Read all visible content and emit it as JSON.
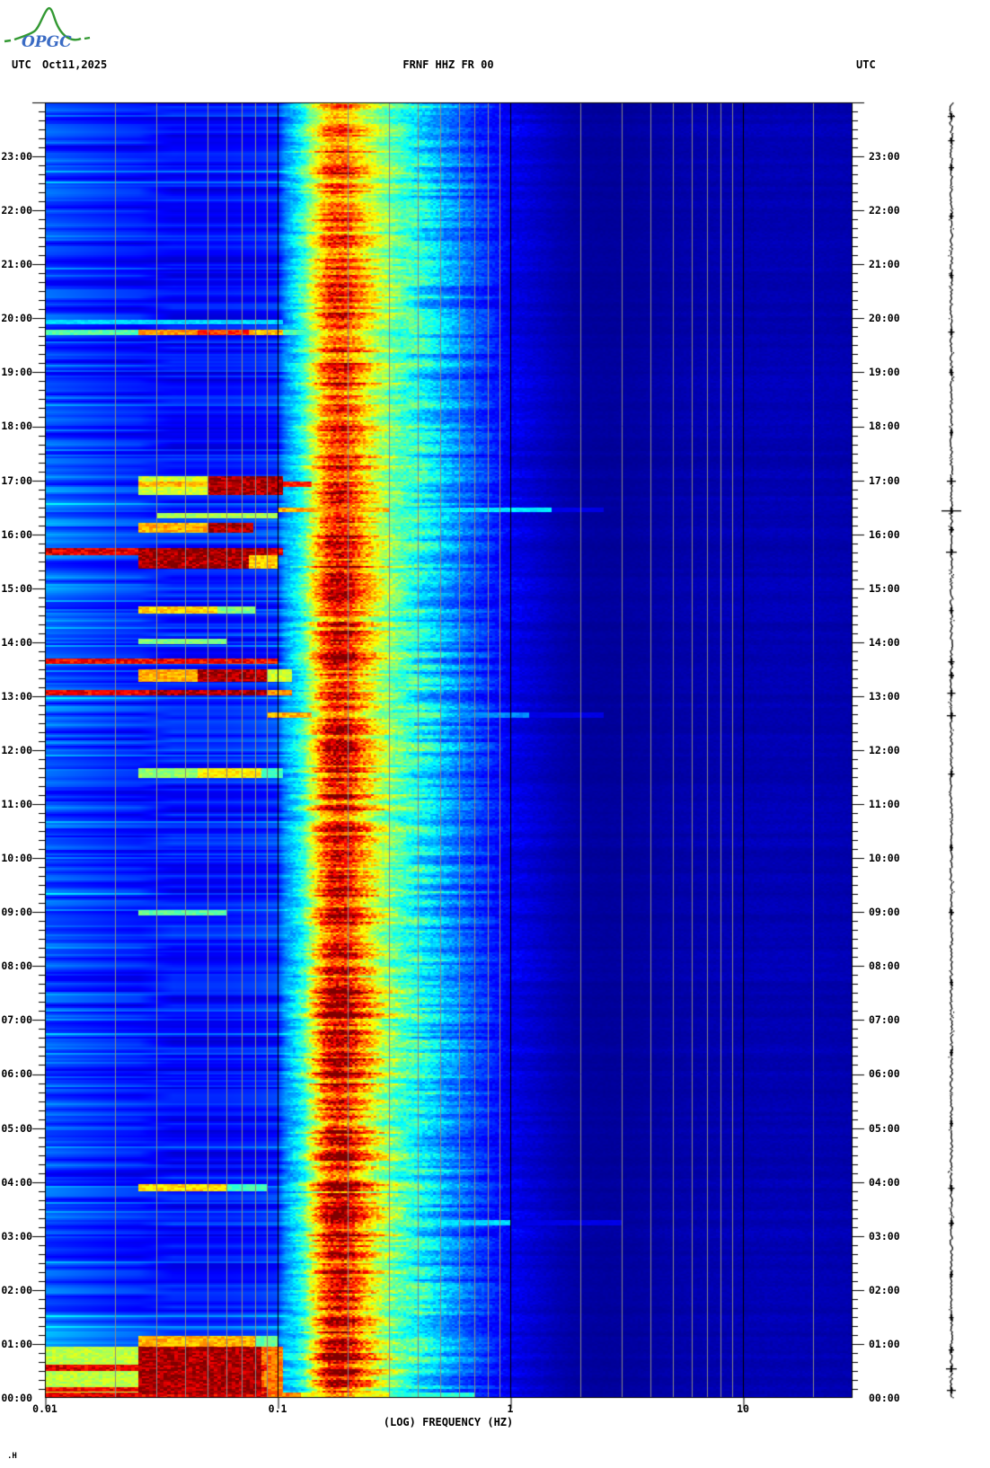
{
  "header": {
    "logo": {
      "text": "OPGC",
      "text_color": "#3a6bc4",
      "curve_color": "#339933"
    },
    "left_utc": "UTC",
    "date": "Oct11,2025",
    "station": "FRNF HHZ FR 00",
    "right_utc": "UTC"
  },
  "footer_mark": ".H",
  "layout_colors": {
    "background": "#ffffff",
    "grid_minor": "#888888",
    "grid_decade": "#000000",
    "axis": "#000000",
    "trace": "#000000"
  },
  "chart_data": {
    "type": "heatmap",
    "subtype": "seismic-spectrogram-24h",
    "title": "FRNF HHZ FR 00",
    "date": "Oct11,2025",
    "xlabel": "(LOG) FREQUENCY (HZ)",
    "x_scale": "log",
    "freq_range_hz": [
      0.01,
      29
    ],
    "freq_tick_values": [
      0.01,
      0.1,
      1,
      10
    ],
    "freq_tick_labels": [
      "0.01",
      "0.1",
      "1",
      "10"
    ],
    "minor_gridlines_hz": [
      0.02,
      0.03,
      0.04,
      0.05,
      0.06,
      0.07,
      0.08,
      0.09,
      0.2,
      0.3,
      0.4,
      0.5,
      0.6,
      0.7,
      0.8,
      0.9,
      2,
      3,
      4,
      5,
      6,
      7,
      8,
      9,
      20
    ],
    "decade_gridlines_hz": [
      0.1,
      1,
      10
    ],
    "time_axis": {
      "unit": "UTC",
      "start": "00:00",
      "end": "24:00",
      "hours_per_plot": 24,
      "minor_tick_minutes": 10,
      "hour_labels": [
        "23:00",
        "22:00",
        "21:00",
        "20:00",
        "19:00",
        "18:00",
        "17:00",
        "16:00",
        "15:00",
        "14:00",
        "13:00",
        "12:00",
        "11:00",
        "10:00",
        "09:00",
        "08:00",
        "07:00",
        "06:00",
        "05:00",
        "04:00",
        "03:00",
        "02:00",
        "01:00",
        "00:00"
      ]
    },
    "colormap": "jet",
    "base_spectrum_log10hz_value": [
      [
        -2.0,
        0.2
      ],
      [
        -1.85,
        0.18
      ],
      [
        -1.7,
        0.16
      ],
      [
        -1.55,
        0.145
      ],
      [
        -1.4,
        0.14
      ],
      [
        -1.25,
        0.14
      ],
      [
        -1.1,
        0.15
      ],
      [
        -1.0,
        0.17
      ],
      [
        -0.97,
        0.26
      ],
      [
        -0.93,
        0.33
      ],
      [
        -0.89,
        0.42
      ],
      [
        -0.86,
        0.55
      ],
      [
        -0.83,
        0.66
      ],
      [
        -0.8,
        0.78
      ],
      [
        -0.77,
        0.86
      ],
      [
        -0.73,
        0.88
      ],
      [
        -0.69,
        0.84
      ],
      [
        -0.65,
        0.74
      ],
      [
        -0.61,
        0.66
      ],
      [
        -0.56,
        0.56
      ],
      [
        -0.5,
        0.48
      ],
      [
        -0.44,
        0.42
      ],
      [
        -0.37,
        0.37
      ],
      [
        -0.3,
        0.3
      ],
      [
        -0.22,
        0.24
      ],
      [
        -0.15,
        0.19
      ],
      [
        -0.08,
        0.15
      ],
      [
        0.0,
        0.11
      ],
      [
        0.1,
        0.08
      ],
      [
        0.2,
        0.05
      ],
      [
        0.3,
        0.032
      ],
      [
        0.42,
        0.028
      ],
      [
        0.55,
        0.032
      ],
      [
        0.7,
        0.04
      ],
      [
        0.9,
        0.048
      ],
      [
        1.1,
        0.052
      ],
      [
        1.3,
        0.05
      ],
      [
        1.47,
        0.045
      ]
    ],
    "microseism_intensity_by_hour": [
      [
        0,
        0.97
      ],
      [
        0.7,
        0.98
      ],
      [
        1.5,
        0.95
      ],
      [
        2.5,
        0.93
      ],
      [
        4,
        0.95
      ],
      [
        6,
        0.96
      ],
      [
        8,
        0.95
      ],
      [
        9.5,
        0.93
      ],
      [
        10.5,
        0.9
      ],
      [
        11.5,
        0.88
      ],
      [
        12.5,
        0.9
      ],
      [
        13.5,
        0.88
      ],
      [
        14.5,
        0.87
      ],
      [
        15.5,
        0.89
      ],
      [
        16.5,
        0.86
      ],
      [
        17.5,
        0.82
      ],
      [
        18.5,
        0.8
      ],
      [
        19.5,
        0.78
      ],
      [
        20.5,
        0.74
      ],
      [
        21.5,
        0.71
      ],
      [
        22.5,
        0.69
      ],
      [
        23.5,
        0.68
      ],
      [
        24,
        0.68
      ]
    ],
    "low_band_intensity_by_hour": [
      [
        0,
        1.35
      ],
      [
        0.8,
        1.4
      ],
      [
        1.2,
        1.15
      ],
      [
        2,
        1.0
      ],
      [
        3,
        0.95
      ],
      [
        4.5,
        0.9
      ],
      [
        6,
        0.88
      ],
      [
        8,
        0.92
      ],
      [
        10,
        1.0
      ],
      [
        11,
        1.02
      ],
      [
        12,
        1.05
      ],
      [
        13,
        1.1
      ],
      [
        14,
        1.02
      ],
      [
        15,
        1.08
      ],
      [
        16,
        1.15
      ],
      [
        17,
        1.05
      ],
      [
        18,
        0.88
      ],
      [
        19,
        0.85
      ],
      [
        20,
        0.9
      ],
      [
        21,
        0.85
      ],
      [
        22,
        0.88
      ],
      [
        23,
        0.92
      ],
      [
        24,
        0.92
      ]
    ],
    "events": [
      {
        "start_hour": 0.0,
        "end_hour": 0.1,
        "bands_hz_value": [
          [
            0.01,
            0.09,
            0.9
          ],
          [
            0.09,
            0.125,
            0.75
          ],
          [
            0.125,
            0.3,
            0.62
          ],
          [
            0.3,
            0.7,
            0.42
          ]
        ]
      },
      {
        "start_hour": 0.08,
        "end_hour": 0.95,
        "bands_hz_value": [
          [
            0.025,
            0.085,
            0.96
          ],
          [
            0.085,
            0.105,
            0.76
          ],
          [
            0.01,
            0.025,
            0.56
          ]
        ]
      },
      {
        "start_hour": 0.12,
        "end_hour": 0.2,
        "bands_hz_value": [
          [
            0.01,
            0.09,
            0.88
          ]
        ]
      },
      {
        "start_hour": 0.5,
        "end_hour": 0.62,
        "bands_hz_value": [
          [
            0.01,
            0.09,
            0.9
          ]
        ]
      },
      {
        "start_hour": 0.95,
        "end_hour": 1.15,
        "bands_hz_value": [
          [
            0.025,
            0.08,
            0.7
          ],
          [
            0.08,
            0.1,
            0.48
          ]
        ]
      },
      {
        "start_hour": 3.2,
        "end_hour": 3.3,
        "bands_hz_value": [
          [
            0.3,
            1.0,
            0.34
          ],
          [
            1.0,
            3.0,
            0.1
          ]
        ]
      },
      {
        "start_hour": 3.83,
        "end_hour": 3.97,
        "bands_hz_value": [
          [
            0.025,
            0.06,
            0.66
          ],
          [
            0.06,
            0.09,
            0.44
          ]
        ]
      },
      {
        "start_hour": 8.95,
        "end_hour": 9.05,
        "bands_hz_value": [
          [
            0.025,
            0.06,
            0.47
          ]
        ]
      },
      {
        "start_hour": 11.5,
        "end_hour": 11.67,
        "bands_hz_value": [
          [
            0.025,
            0.045,
            0.52
          ],
          [
            0.045,
            0.085,
            0.64
          ],
          [
            0.085,
            0.105,
            0.44
          ]
        ]
      },
      {
        "start_hour": 12.6,
        "end_hour": 12.7,
        "bands_hz_value": [
          [
            0.09,
            0.14,
            0.7
          ],
          [
            0.25,
            0.5,
            0.48
          ],
          [
            0.5,
            1.2,
            0.26
          ],
          [
            1.2,
            2.5,
            0.1
          ]
        ]
      },
      {
        "start_hour": 13.02,
        "end_hour": 13.13,
        "bands_hz_value": [
          [
            0.01,
            0.028,
            0.88
          ],
          [
            0.028,
            0.09,
            0.96
          ],
          [
            0.09,
            0.115,
            0.74
          ]
        ]
      },
      {
        "start_hour": 13.27,
        "end_hour": 13.5,
        "bands_hz_value": [
          [
            0.025,
            0.045,
            0.7
          ],
          [
            0.045,
            0.09,
            0.96
          ],
          [
            0.09,
            0.115,
            0.58
          ]
        ]
      },
      {
        "start_hour": 13.6,
        "end_hour": 13.7,
        "bands_hz_value": [
          [
            0.01,
            0.1,
            0.87
          ]
        ]
      },
      {
        "start_hour": 13.97,
        "end_hour": 14.07,
        "bands_hz_value": [
          [
            0.025,
            0.06,
            0.5
          ]
        ]
      },
      {
        "start_hour": 14.53,
        "end_hour": 14.67,
        "bands_hz_value": [
          [
            0.025,
            0.055,
            0.67
          ],
          [
            0.055,
            0.08,
            0.5
          ]
        ]
      },
      {
        "start_hour": 15.37,
        "end_hour": 15.62,
        "bands_hz_value": [
          [
            0.025,
            0.075,
            0.96
          ],
          [
            0.075,
            0.1,
            0.68
          ]
        ]
      },
      {
        "start_hour": 15.62,
        "end_hour": 15.76,
        "bands_hz_value": [
          [
            0.01,
            0.105,
            0.9
          ],
          [
            0.025,
            0.09,
            0.97
          ]
        ]
      },
      {
        "start_hour": 16.03,
        "end_hour": 16.22,
        "bands_hz_value": [
          [
            0.025,
            0.05,
            0.7
          ],
          [
            0.05,
            0.078,
            0.96
          ]
        ]
      },
      {
        "start_hour": 16.3,
        "end_hour": 16.4,
        "bands_hz_value": [
          [
            0.03,
            0.1,
            0.54
          ]
        ]
      },
      {
        "start_hour": 16.42,
        "end_hour": 16.5,
        "bands_hz_value": [
          [
            0.1,
            0.3,
            0.7
          ],
          [
            0.3,
            1.5,
            0.36
          ],
          [
            1.5,
            2.5,
            0.1
          ]
        ]
      },
      {
        "start_hour": 16.73,
        "end_hour": 17.08,
        "bands_hz_value": [
          [
            0.05,
            0.105,
            0.96
          ],
          [
            0.025,
            0.05,
            0.58
          ]
        ]
      },
      {
        "start_hour": 16.88,
        "end_hour": 16.98,
        "bands_hz_value": [
          [
            0.105,
            0.14,
            0.84
          ],
          [
            0.025,
            0.05,
            0.7
          ]
        ]
      },
      {
        "start_hour": 19.7,
        "end_hour": 19.8,
        "bands_hz_value": [
          [
            0.01,
            0.025,
            0.46
          ],
          [
            0.025,
            0.045,
            0.72
          ],
          [
            0.045,
            0.075,
            0.82
          ],
          [
            0.075,
            0.105,
            0.7
          ],
          [
            0.105,
            0.14,
            0.46
          ]
        ]
      },
      {
        "start_hour": 19.9,
        "end_hour": 19.98,
        "bands_hz_value": [
          [
            0.01,
            0.105,
            0.34
          ]
        ]
      }
    ],
    "helicorder_trace": {
      "color": "#000000",
      "spikes_hour_amplitude": [
        [
          0.15,
          5
        ],
        [
          0.55,
          6
        ],
        [
          0.9,
          3
        ],
        [
          1.5,
          2.5
        ],
        [
          2.3,
          2
        ],
        [
          3.25,
          3
        ],
        [
          3.9,
          3.5
        ],
        [
          5.1,
          2
        ],
        [
          6.4,
          2
        ],
        [
          7.7,
          2
        ],
        [
          9.0,
          3
        ],
        [
          10.2,
          2
        ],
        [
          11.57,
          3.5
        ],
        [
          12.65,
          5
        ],
        [
          13.07,
          4.5
        ],
        [
          13.4,
          3
        ],
        [
          13.65,
          3.5
        ],
        [
          14.6,
          2.5
        ],
        [
          15.68,
          6
        ],
        [
          16.1,
          3
        ],
        [
          16.45,
          11
        ],
        [
          17.0,
          5
        ],
        [
          17.9,
          2
        ],
        [
          19.0,
          2.5
        ],
        [
          19.75,
          3.5
        ],
        [
          20.8,
          2.5
        ],
        [
          21.9,
          2.5
        ],
        [
          22.8,
          3
        ],
        [
          23.3,
          3.5
        ],
        [
          23.75,
          4
        ]
      ]
    }
  }
}
